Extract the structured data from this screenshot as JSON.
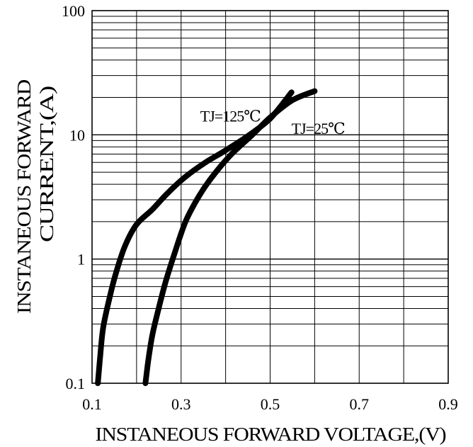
{
  "chart_data": {
    "type": "line",
    "title": "",
    "xlabel": "INSTANEOUS FORWARD VOLTAGE,(V)",
    "ylabel_lines": [
      "INSTANEOUS FORWARD",
      "CURRENT,(A)"
    ],
    "x_scale": "linear",
    "y_scale": "log",
    "xlim": [
      0.1,
      0.9
    ],
    "ylim": [
      0.1,
      100
    ],
    "x_ticks": [
      0.1,
      0.3,
      0.5,
      0.7,
      0.9
    ],
    "x_tick_labels": [
      "0.1",
      "0.3",
      "0.5",
      "0.7",
      "0.9"
    ],
    "y_ticks": [
      0.1,
      1,
      10,
      100
    ],
    "y_tick_labels": [
      "0.1",
      "1",
      "10",
      "100"
    ],
    "grid": true,
    "series": [
      {
        "name": "TJ=125℃",
        "color": "#000000",
        "points": [
          [
            0.113,
            0.1
          ],
          [
            0.118,
            0.16
          ],
          [
            0.125,
            0.28
          ],
          [
            0.14,
            0.5
          ],
          [
            0.155,
            0.8
          ],
          [
            0.175,
            1.3
          ],
          [
            0.2,
            1.9
          ],
          [
            0.235,
            2.5
          ],
          [
            0.27,
            3.4
          ],
          [
            0.31,
            4.6
          ],
          [
            0.355,
            6.0
          ],
          [
            0.4,
            7.5
          ],
          [
            0.45,
            9.8
          ],
          [
            0.5,
            13.5
          ],
          [
            0.548,
            22
          ]
        ]
      },
      {
        "name": "TJ=25℃",
        "color": "#000000",
        "points": [
          [
            0.22,
            0.1
          ],
          [
            0.226,
            0.15
          ],
          [
            0.235,
            0.24
          ],
          [
            0.248,
            0.38
          ],
          [
            0.265,
            0.65
          ],
          [
            0.285,
            1.1
          ],
          [
            0.31,
            2.0
          ],
          [
            0.34,
            3.2
          ],
          [
            0.37,
            4.6
          ],
          [
            0.41,
            6.8
          ],
          [
            0.46,
            10.0
          ],
          [
            0.5,
            13.8
          ],
          [
            0.55,
            19.0
          ],
          [
            0.6,
            22.5
          ]
        ]
      }
    ],
    "series_label_positions": [
      {
        "x": 0.343,
        "y": 12.8
      },
      {
        "x": 0.548,
        "y": 10.2
      }
    ]
  }
}
